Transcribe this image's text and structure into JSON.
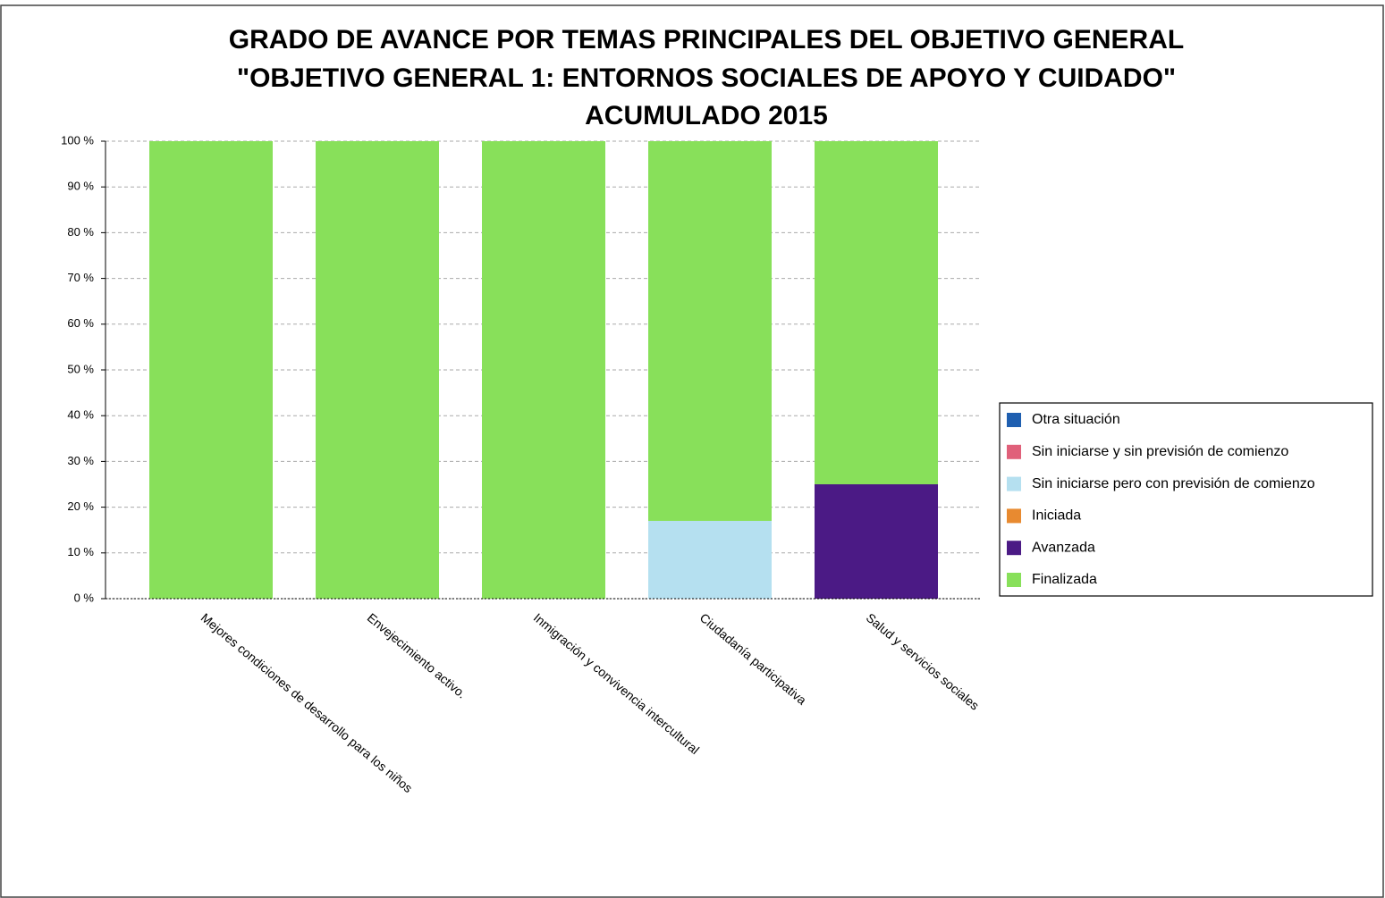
{
  "chart_data": {
    "type": "stacked_bar",
    "title": [
      "GRADO DE AVANCE POR TEMAS PRINCIPALES DEL OBJETIVO GENERAL",
      "\"OBJETIVO GENERAL 1: ENTORNOS SOCIALES DE APOYO Y CUIDADO\"",
      "ACUMULADO 2015"
    ],
    "categories": [
      "Mejores condiciones de desarrollo para los niños",
      "Envejecimiento activo.",
      "Inmigración y convivencia intercultural",
      "Ciudadanía participativa",
      "Salud y servicios sociales"
    ],
    "series": [
      {
        "name": "Otra situación",
        "color": "#1f5fb0",
        "values": [
          0,
          0,
          0,
          0,
          0
        ]
      },
      {
        "name": "Sin iniciarse y sin previsión de comienzo",
        "color": "#e0607a",
        "values": [
          0,
          0,
          0,
          0,
          0
        ]
      },
      {
        "name": "Sin iniciarse pero con previsión de comienzo",
        "color": "#b5e0f0",
        "values": [
          0,
          0,
          0,
          17,
          0
        ]
      },
      {
        "name": "Iniciada",
        "color": "#e88a30",
        "values": [
          0,
          0,
          0,
          0,
          0
        ]
      },
      {
        "name": "Avanzada",
        "color": "#4b1a85",
        "values": [
          0,
          0,
          0,
          0,
          25
        ]
      },
      {
        "name": "Finalizada",
        "color": "#88e05a",
        "values": [
          100,
          100,
          100,
          83,
          75
        ]
      }
    ],
    "ylim": [
      0,
      100
    ],
    "yticks": [
      {
        "value": 0,
        "label": "0 %"
      },
      {
        "value": 10,
        "label": "10 %"
      },
      {
        "value": 20,
        "label": "20 %"
      },
      {
        "value": 30,
        "label": "30 %"
      },
      {
        "value": 40,
        "label": "40 %"
      },
      {
        "value": 50,
        "label": "50 %"
      },
      {
        "value": 60,
        "label": "60 %"
      },
      {
        "value": 70,
        "label": "70 %"
      },
      {
        "value": 80,
        "label": "80 %"
      },
      {
        "value": 90,
        "label": "90 %"
      },
      {
        "value": 100,
        "label": "100 %"
      }
    ],
    "grid": true
  }
}
